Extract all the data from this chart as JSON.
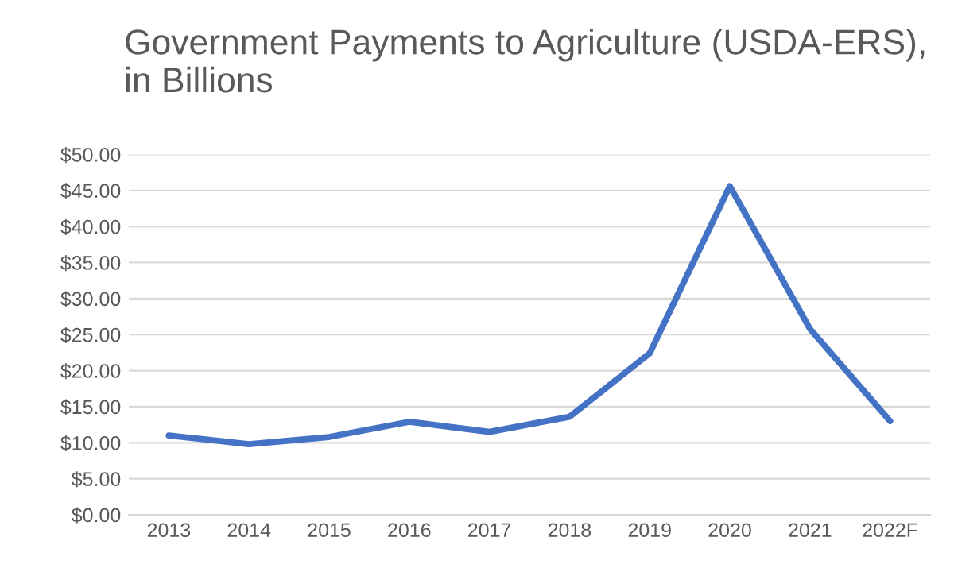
{
  "chart_data": {
    "type": "line",
    "title": "Government Payments to Agriculture (USDA-ERS), in Billions",
    "categories": [
      "2013",
      "2014",
      "2015",
      "2016",
      "2017",
      "2018",
      "2019",
      "2020",
      "2021",
      "2022F"
    ],
    "series": [
      {
        "color": "#4472c4",
        "values": [
          11.0,
          9.8,
          10.8,
          12.9,
          11.5,
          13.6,
          22.4,
          45.6,
          25.8,
          13.0
        ]
      }
    ],
    "ylim": [
      0,
      50
    ],
    "yticks": [
      {
        "value": 0,
        "label": "$0.00"
      },
      {
        "value": 5,
        "label": "$5.00"
      },
      {
        "value": 10,
        "label": "$10.00"
      },
      {
        "value": 15,
        "label": "$15.00"
      },
      {
        "value": 20,
        "label": "$20.00"
      },
      {
        "value": 25,
        "label": "$25.00"
      },
      {
        "value": 30,
        "label": "$30.00"
      },
      {
        "value": 35,
        "label": "$35.00"
      },
      {
        "value": 40,
        "label": "$40.00"
      },
      {
        "value": 45,
        "label": "$45.00"
      },
      {
        "value": 50,
        "label": "$50.00"
      }
    ],
    "grid": "y",
    "marker": "none",
    "line_style": "solid"
  }
}
